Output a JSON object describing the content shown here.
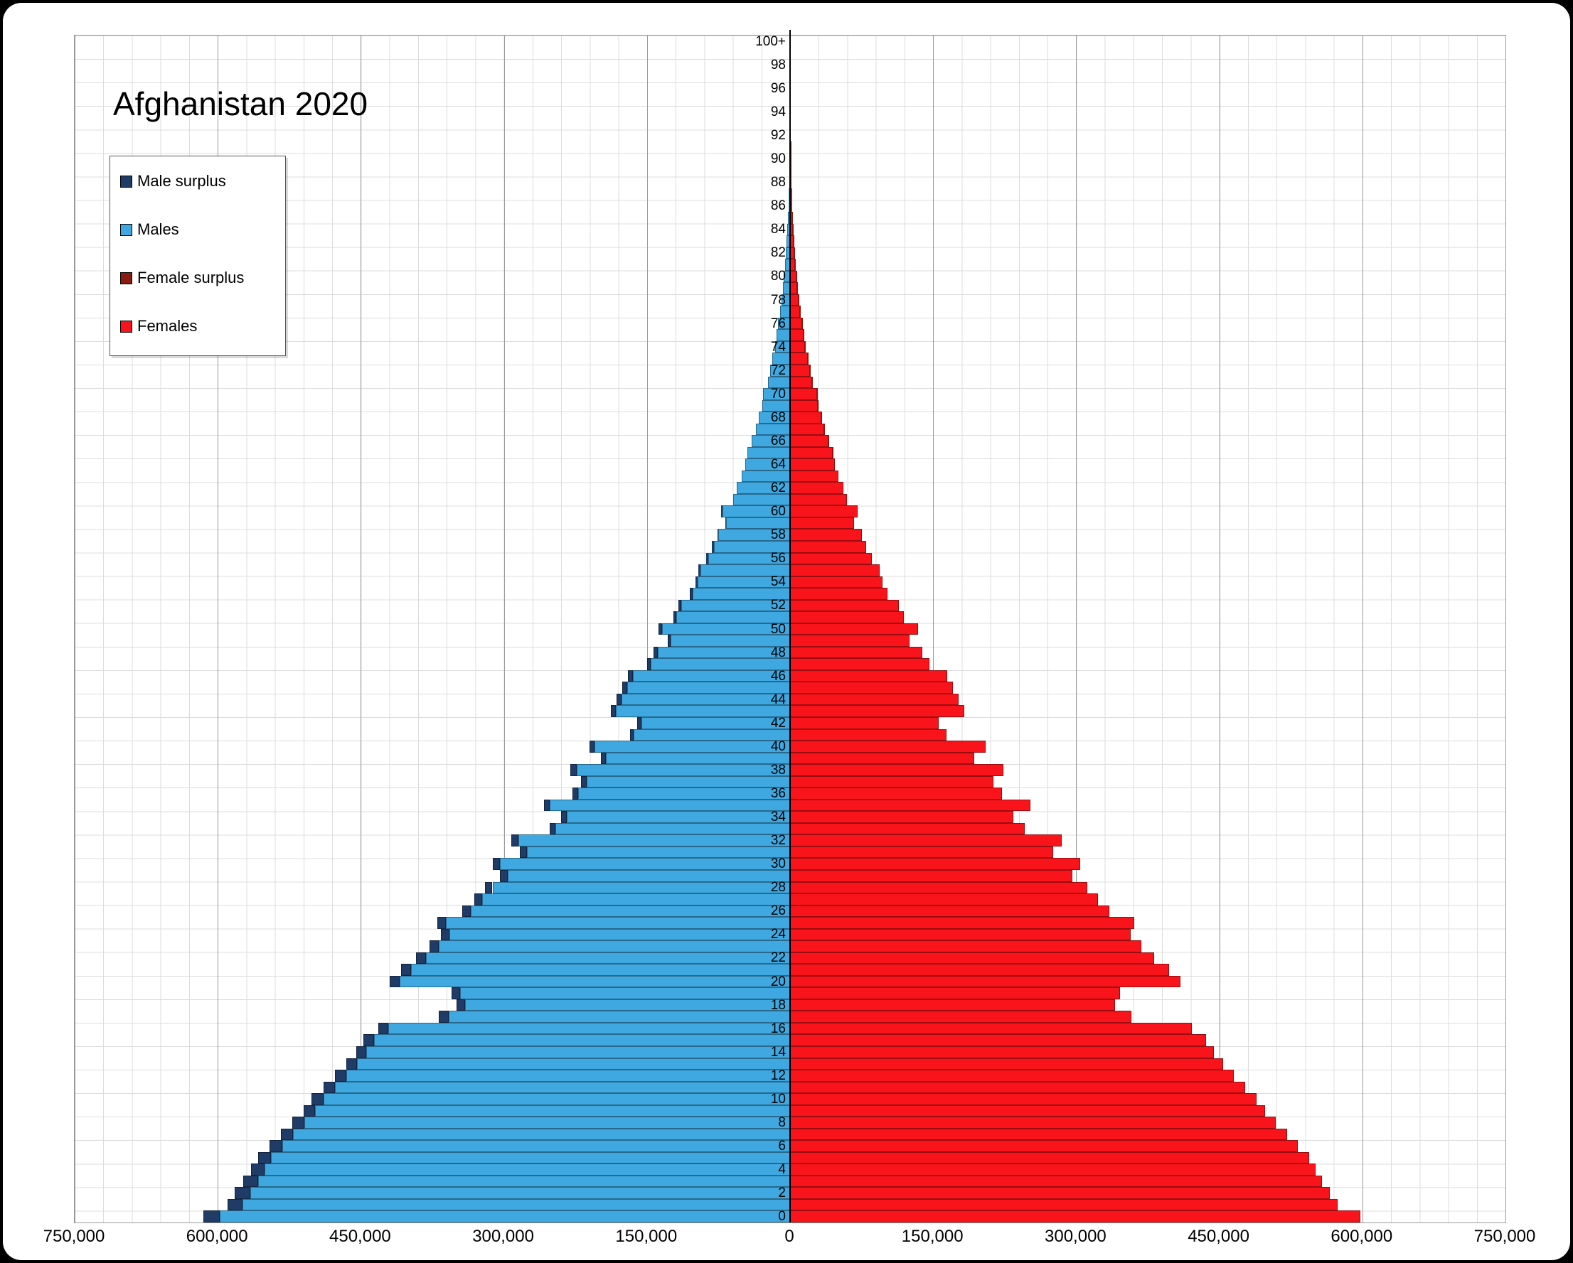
{
  "title": "Afghanistan 2020",
  "legend": {
    "items": [
      {
        "label": "Male surplus",
        "color": "#1F3B66"
      },
      {
        "label": "Males",
        "color": "#3FA8E0"
      },
      {
        "label": "Female surplus",
        "color": "#8B1A10"
      },
      {
        "label": "Females",
        "color": "#F9141B"
      }
    ]
  },
  "chart_data": {
    "type": "bar",
    "subtype": "population-pyramid",
    "title": "Afghanistan 2020",
    "orientation": "horizontal-mirrored",
    "grid": "on",
    "legend_position": "upper-left",
    "x_axis": {
      "max": 750000,
      "major_step": 150000,
      "minor_step": 30000,
      "tick_values": [
        -750000,
        -600000,
        -450000,
        -300000,
        -150000,
        0,
        150000,
        300000,
        450000,
        600000,
        750000
      ],
      "tick_labels": [
        "750,000",
        "600,000",
        "450,000",
        "300,000",
        "150,000",
        "0",
        "150,000",
        "300,000",
        "450,000",
        "600,000",
        "750,000"
      ]
    },
    "y_axis": {
      "unit": "age (single years, 0 bottom to 100+ top)",
      "tick_labels": [
        "0",
        "2",
        "4",
        "6",
        "8",
        "10",
        "12",
        "14",
        "16",
        "18",
        "20",
        "22",
        "24",
        "26",
        "28",
        "30",
        "32",
        "34",
        "36",
        "38",
        "40",
        "42",
        "44",
        "46",
        "48",
        "50",
        "52",
        "54",
        "56",
        "58",
        "60",
        "62",
        "64",
        "66",
        "68",
        "70",
        "72",
        "74",
        "76",
        "78",
        "80",
        "82",
        "84",
        "86",
        "88",
        "90",
        "92",
        "94",
        "96",
        "98",
        "100+"
      ]
    },
    "colors": {
      "males": "#3FA8E0",
      "male_surplus": "#1F3B66",
      "females": "#F9141B",
      "female_surplus": "#8B1A10"
    },
    "series": [
      {
        "name": "Males",
        "values": [
          615000,
          590000,
          582000,
          573000,
          565000,
          558000,
          546000,
          534000,
          522000,
          510000,
          502000,
          489000,
          477000,
          465000,
          455000,
          447000,
          432000,
          368000,
          350000,
          355000,
          420000,
          408000,
          392000,
          378000,
          366000,
          370000,
          344000,
          331000,
          320000,
          304000,
          312000,
          283000,
          292000,
          252000,
          240000,
          258000,
          228000,
          219000,
          230000,
          198000,
          210000,
          168000,
          160000,
          188000,
          182000,
          176000,
          170000,
          150000,
          143000,
          128000,
          138000,
          122000,
          117000,
          105000,
          99000,
          96000,
          88000,
          82000,
          76000,
          68000,
          72000,
          60000,
          56000,
          51000,
          47000,
          45000,
          40000,
          36000,
          33000,
          29000,
          28000,
          23000,
          21000,
          18500,
          16000,
          14500,
          12500,
          10800,
          9200,
          7800,
          6600,
          5400,
          4400,
          3600,
          2900,
          2300,
          1800,
          1400,
          1050,
          780,
          570,
          410,
          290,
          200,
          135,
          90,
          58,
          36,
          22,
          13,
          15
        ]
      },
      {
        "name": "Females",
        "values": [
          598000,
          574000,
          566000,
          558000,
          551000,
          544000,
          532000,
          521000,
          509000,
          498000,
          489000,
          477000,
          465000,
          454000,
          444000,
          436000,
          421000,
          358000,
          341000,
          346000,
          409000,
          397000,
          382000,
          368000,
          357000,
          361000,
          335000,
          323000,
          312000,
          296000,
          304000,
          276000,
          285000,
          246000,
          234000,
          252000,
          222000,
          213000,
          224000,
          193000,
          205000,
          164000,
          156000,
          183000,
          177000,
          171000,
          165000,
          146000,
          139000,
          125000,
          134000,
          119000,
          114000,
          102000,
          97000,
          94000,
          86000,
          80000,
          75000,
          67000,
          71000,
          60000,
          56000,
          51000,
          47000,
          45500,
          40500,
          36500,
          33500,
          29500,
          28700,
          23700,
          21700,
          19200,
          16700,
          15200,
          13200,
          11500,
          9900,
          8400,
          7200,
          5900,
          4900,
          4000,
          3300,
          2600,
          2050,
          1600,
          1220,
          910,
          670,
          490,
          350,
          245,
          168,
          112,
          74,
          47,
          29,
          18,
          21
        ]
      }
    ]
  }
}
